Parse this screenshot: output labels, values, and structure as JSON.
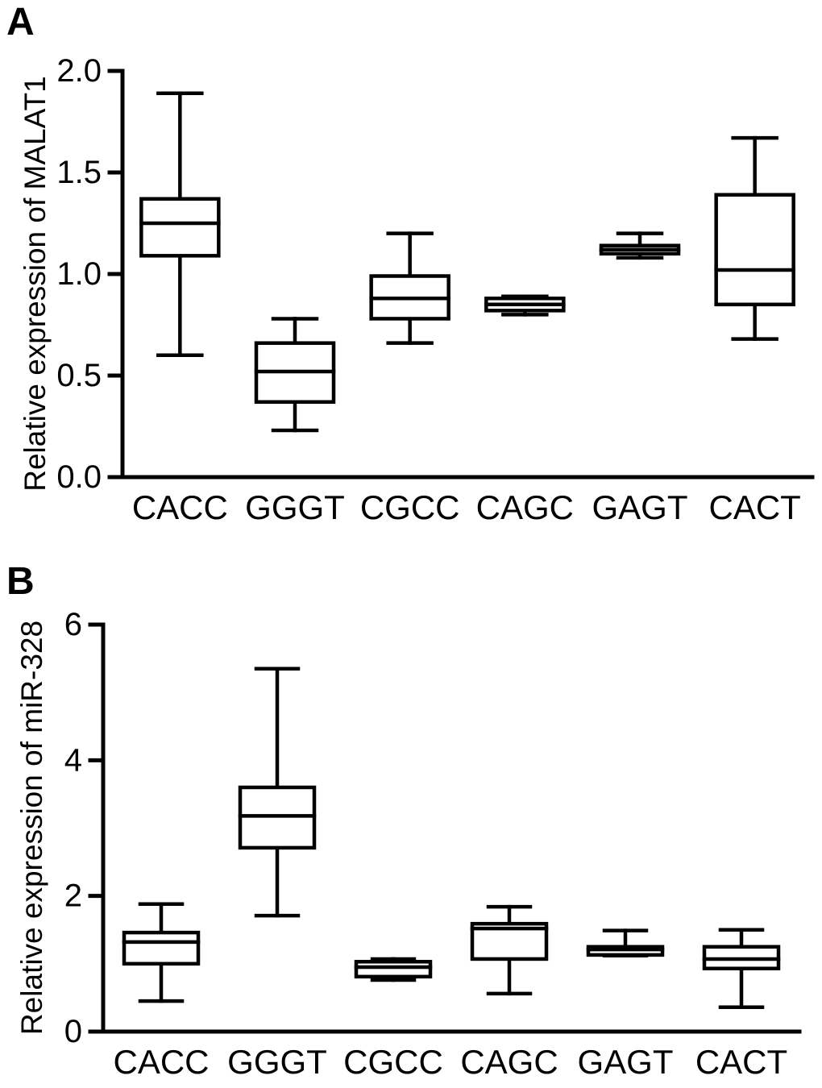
{
  "chart_data": [
    {
      "type": "boxplot",
      "panel_label": "A",
      "ylabel": "Relative expression of MALAT1",
      "ylim": [
        0.0,
        2.0
      ],
      "yticks": [
        0.0,
        0.5,
        1.0,
        1.5,
        2.0
      ],
      "ytick_labels": [
        "0.0",
        "0.5",
        "1.0",
        "1.5",
        "2.0"
      ],
      "categories": [
        "CACC",
        "GGGT",
        "CGCC",
        "CAGC",
        "GAGT",
        "CACT"
      ],
      "series": [
        {
          "category": "CACC",
          "whisker_low": 0.6,
          "q1": 1.09,
          "median": 1.25,
          "q3": 1.37,
          "whisker_high": 1.89
        },
        {
          "category": "GGGT",
          "whisker_low": 0.23,
          "q1": 0.37,
          "median": 0.52,
          "q3": 0.66,
          "whisker_high": 0.78
        },
        {
          "category": "CGCC",
          "whisker_low": 0.66,
          "q1": 0.78,
          "median": 0.88,
          "q3": 0.99,
          "whisker_high": 1.2
        },
        {
          "category": "CAGC",
          "whisker_low": 0.8,
          "q1": 0.82,
          "median": 0.85,
          "q3": 0.88,
          "whisker_high": 0.89
        },
        {
          "category": "GAGT",
          "whisker_low": 1.08,
          "q1": 1.1,
          "median": 1.12,
          "q3": 1.14,
          "whisker_high": 1.2
        },
        {
          "category": "CACT",
          "whisker_low": 0.68,
          "q1": 0.85,
          "median": 1.02,
          "q3": 1.39,
          "whisker_high": 1.67
        }
      ],
      "grid": false,
      "legend": "none",
      "line_color": "#000000"
    },
    {
      "type": "boxplot",
      "panel_label": "B",
      "ylabel": "Relative expression of miR-328",
      "ylim": [
        0,
        6
      ],
      "yticks": [
        0,
        2,
        4,
        6
      ],
      "ytick_labels": [
        "0",
        "2",
        "4",
        "6"
      ],
      "categories": [
        "CACC",
        "GGGT",
        "CGCC",
        "CAGC",
        "GAGT",
        "CACT"
      ],
      "series": [
        {
          "category": "CACC",
          "whisker_low": 0.45,
          "q1": 1.0,
          "median": 1.32,
          "q3": 1.46,
          "whisker_high": 1.88
        },
        {
          "category": "GGGT",
          "whisker_low": 1.71,
          "q1": 2.71,
          "median": 3.18,
          "q3": 3.6,
          "whisker_high": 5.35
        },
        {
          "category": "CGCC",
          "whisker_low": 0.76,
          "q1": 0.81,
          "median": 0.95,
          "q3": 1.03,
          "whisker_high": 1.07
        },
        {
          "category": "CAGC",
          "whisker_low": 0.56,
          "q1": 1.07,
          "median": 1.52,
          "q3": 1.59,
          "whisker_high": 1.84
        },
        {
          "category": "GAGT",
          "whisker_low": 1.12,
          "q1": 1.13,
          "median": 1.21,
          "q3": 1.25,
          "whisker_high": 1.49
        },
        {
          "category": "CACT",
          "whisker_low": 0.36,
          "q1": 0.93,
          "median": 1.07,
          "q3": 1.25,
          "whisker_high": 1.5
        }
      ],
      "grid": false,
      "legend": "none",
      "line_color": "#000000"
    }
  ]
}
